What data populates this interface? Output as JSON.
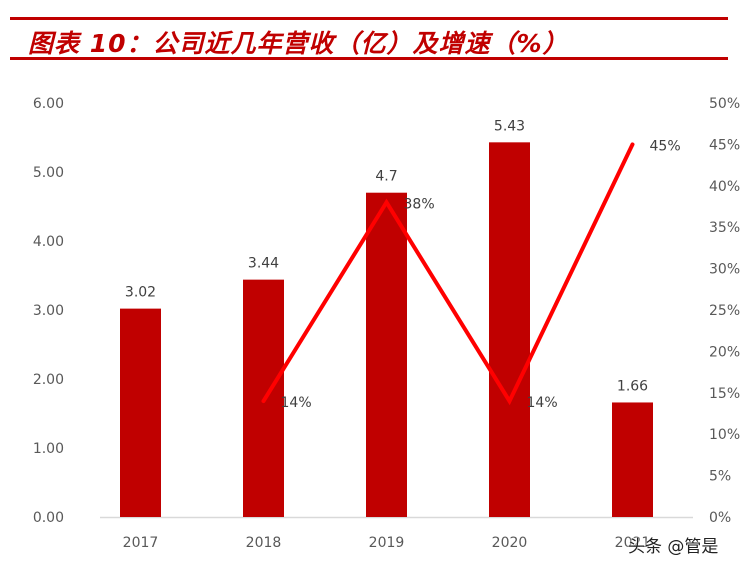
{
  "title": "图表 10：公司近几年营收（亿）及增速（%）",
  "watermark": "头条 @管是",
  "colors": {
    "bar": "#c00000",
    "line": "#ff0000",
    "title": "#c00000",
    "axis_text": "#595959"
  },
  "chart_data": {
    "type": "bar+line",
    "title": "公司近几年营收（亿）及增速（%）",
    "categories": [
      "2017",
      "2018",
      "2019",
      "2020",
      "2021"
    ],
    "series": [
      {
        "name": "营收（亿）",
        "type": "bar",
        "axis": "left",
        "values": [
          3.02,
          3.44,
          4.7,
          5.43,
          1.66
        ],
        "labels": [
          "3.02",
          "3.44",
          "4.7",
          "5.43",
          "1.66"
        ]
      },
      {
        "name": "增速（%）",
        "type": "line",
        "axis": "right",
        "values": [
          null,
          14,
          38,
          14,
          45
        ],
        "labels": [
          "",
          "14%",
          "38%",
          "14%",
          "45%"
        ]
      }
    ],
    "left_axis": {
      "ylim": [
        0,
        6
      ],
      "ticks": [
        "0.00",
        "1.00",
        "2.00",
        "3.00",
        "4.00",
        "5.00",
        "6.00"
      ]
    },
    "right_axis": {
      "ylim": [
        0,
        50
      ],
      "ticks": [
        "0%",
        "5%",
        "10%",
        "15%",
        "20%",
        "25%",
        "30%",
        "35%",
        "40%",
        "45%",
        "50%"
      ]
    },
    "xlabel": "",
    "ylabel": "",
    "grid": false,
    "legend": "none"
  }
}
